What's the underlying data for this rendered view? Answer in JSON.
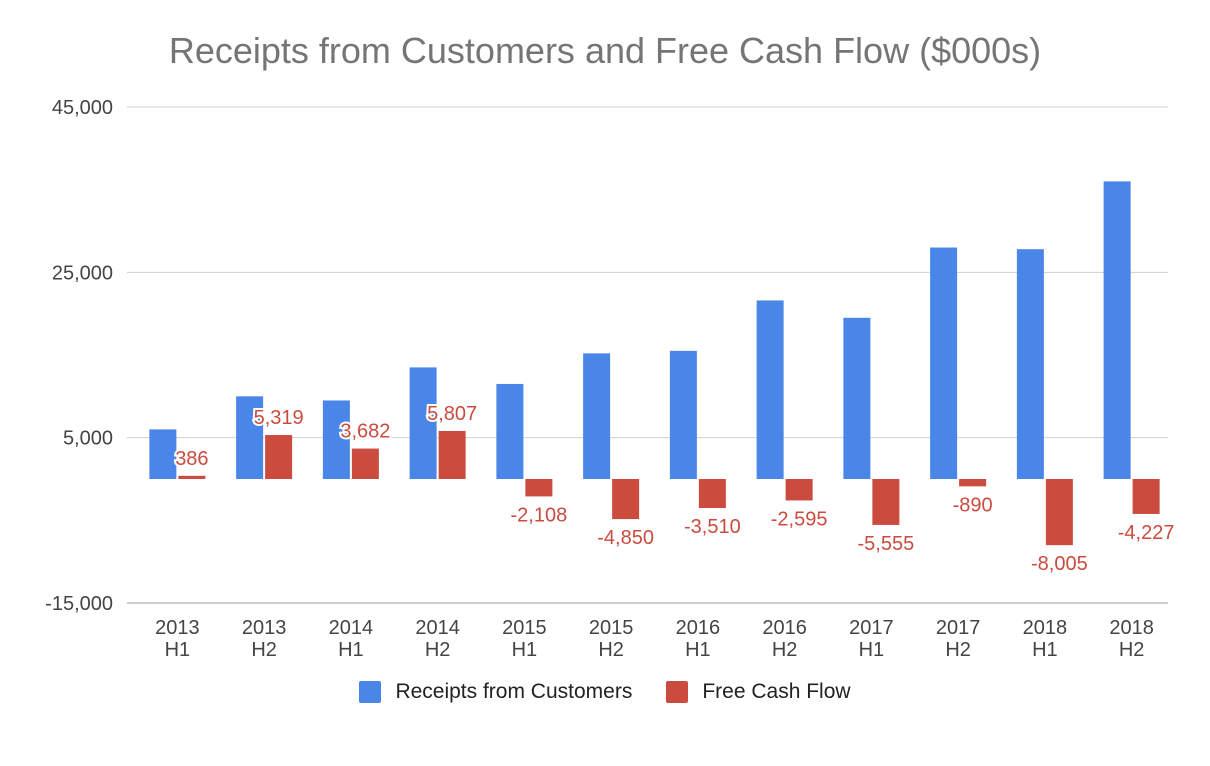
{
  "chart_data": {
    "type": "bar",
    "title": "Receipts from Customers and Free Cash Flow ($000s)",
    "categories": [
      "2013 H1",
      "2013 H2",
      "2014 H1",
      "2014 H2",
      "2015 H1",
      "2015 H2",
      "2016 H1",
      "2016 H2",
      "2017 H1",
      "2017 H2",
      "2018 H1",
      "2018 H2"
    ],
    "category_lines": [
      [
        "2013",
        "H1"
      ],
      [
        "2013",
        "H2"
      ],
      [
        "2014",
        "H1"
      ],
      [
        "2014",
        "H2"
      ],
      [
        "2015",
        "H1"
      ],
      [
        "2015",
        "H2"
      ],
      [
        "2016",
        "H1"
      ],
      [
        "2016",
        "H2"
      ],
      [
        "2017",
        "H1"
      ],
      [
        "2017",
        "H2"
      ],
      [
        "2018",
        "H1"
      ],
      [
        "2018",
        "H2"
      ]
    ],
    "series": [
      {
        "name": "Receipts from Customers",
        "color": "#4a86e8",
        "values": [
          6000,
          10000,
          9500,
          13500,
          11500,
          15200,
          15500,
          21600,
          19500,
          28000,
          27800,
          36000
        ],
        "labels": [
          "",
          "",
          "",
          "",
          "",
          "",
          "",
          "",
          "",
          "",
          "",
          ""
        ]
      },
      {
        "name": "Free Cash Flow",
        "color": "#cc4b3f",
        "values": [
          386,
          5319,
          3682,
          5807,
          -2108,
          -4850,
          -3510,
          -2595,
          -5555,
          -890,
          -8005,
          -4227
        ],
        "labels": [
          "386",
          "5,319",
          "3,682",
          "5,807",
          "-2,108",
          "-4,850",
          "-3,510",
          "-2,595",
          "-5,555",
          "-890",
          "-8,005",
          "-4,227"
        ]
      }
    ],
    "yticks": [
      45000,
      25000,
      5000,
      -15000
    ],
    "ytick_labels": [
      "45,000",
      "25,000",
      "5,000",
      "-15,000"
    ],
    "ylim": [
      -15000,
      45000
    ],
    "xlabel": "",
    "ylabel": "",
    "legend_position": "bottom",
    "grid": true,
    "label_color": "#cc4b3f"
  }
}
